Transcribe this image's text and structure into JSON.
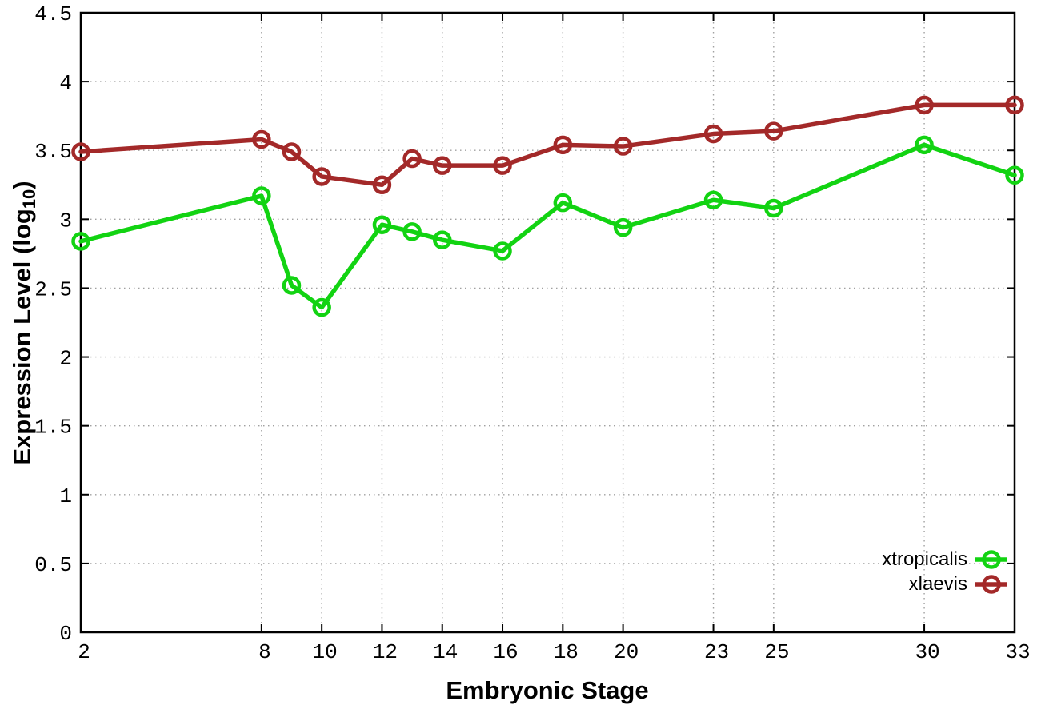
{
  "chart_data": {
    "type": "line",
    "title": "",
    "xlabel": "Embryonic Stage",
    "ylabel": "Expression Level (log10)",
    "ylabel_parts": {
      "prefix": "Expression Level (log",
      "subscript": "10",
      "suffix": ")"
    },
    "x": [
      2,
      8,
      9,
      10,
      12,
      13,
      14,
      16,
      18,
      20,
      23,
      25,
      30,
      33
    ],
    "xlim": [
      2,
      33
    ],
    "ylim": [
      0,
      4.5
    ],
    "xtick_values": [
      2,
      8,
      10,
      12,
      14,
      16,
      18,
      20,
      23,
      25,
      30,
      33
    ],
    "xtick_labels": [
      "2",
      "8",
      "10",
      "12",
      "14",
      "16",
      "18",
      "20",
      "23",
      "25",
      "30",
      "33"
    ],
    "ytick_values": [
      0,
      0.5,
      1,
      1.5,
      2,
      2.5,
      3,
      3.5,
      4,
      4.5
    ],
    "ytick_labels": [
      "0",
      "0.5",
      "1",
      "1.5",
      "2",
      "2.5",
      "3",
      "3.5",
      "4",
      "4.5"
    ],
    "grid": true,
    "legend": {
      "position": "inside-bottom-right",
      "entries": [
        "xtropicalis",
        "xlaevis"
      ]
    },
    "series": [
      {
        "name": "xtropicalis",
        "color": "#12d312",
        "marker": "open-circle",
        "values": [
          2.84,
          3.17,
          2.52,
          2.36,
          2.96,
          2.91,
          2.85,
          2.77,
          3.12,
          2.94,
          3.14,
          3.08,
          3.54,
          3.32
        ]
      },
      {
        "name": "xlaevis",
        "color": "#a32929",
        "marker": "open-circle",
        "values": [
          3.49,
          3.58,
          3.49,
          3.31,
          3.25,
          3.44,
          3.39,
          3.39,
          3.54,
          3.53,
          3.62,
          3.64,
          3.83,
          3.83
        ]
      }
    ],
    "colors": {
      "grid": "#a0a0a0",
      "axis": "#000000",
      "background": "#ffffff"
    }
  }
}
